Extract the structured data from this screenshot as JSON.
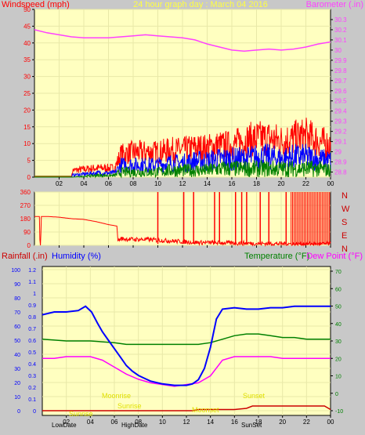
{
  "title": "24 hour graph day : March 04 2016",
  "colors": {
    "background": "#c8c8c8",
    "plot_bg": "#ffffc0",
    "grid": "#e8e8a8",
    "wind_gust": "#ff0000",
    "wind_avg": "#0000ff",
    "wind_low": "#008000",
    "barometer": "#ff40ff",
    "direction": "#ff0000",
    "humidity": "#0000ff",
    "temperature": "#008000",
    "dewpoint": "#ff00ff",
    "rainfall": "#cc0000",
    "sun_text": "#e0e000"
  },
  "x_tick_labels": [
    "02",
    "04",
    "06",
    "08",
    "10",
    "12",
    "14",
    "16",
    "18",
    "20",
    "22",
    "00"
  ],
  "chart_data": [
    {
      "type": "line",
      "name": "wind-barometer",
      "ylabel_left": "Windspeed (mph)",
      "ylabel_right": "Barometer (.in)",
      "ylim_left": [
        0,
        50
      ],
      "ylim_right": [
        28.75,
        30.4
      ],
      "left_ticks": [
        "0",
        "5",
        "10",
        "15",
        "20",
        "25",
        "30",
        "35",
        "40",
        "45",
        "50"
      ],
      "right_ticks": [
        "28.8",
        "28.9",
        "29",
        "29.1",
        "29.2",
        "29.3",
        "29.4",
        "29.5",
        "29.6",
        "29.7",
        "29.8",
        "29.9",
        "30",
        "30.1",
        "30.2",
        "30.3"
      ],
      "barometer": {
        "x": [
          0,
          1,
          2,
          3,
          4,
          5,
          6,
          7,
          8,
          9,
          10,
          11,
          12,
          13,
          14,
          15,
          16,
          17,
          18,
          19,
          20,
          21,
          22,
          23,
          24
        ],
        "y": [
          30.2,
          30.17,
          30.15,
          30.13,
          30.12,
          30.12,
          30.12,
          30.13,
          30.14,
          30.15,
          30.14,
          30.13,
          30.12,
          30.1,
          30.06,
          30.03,
          30.0,
          29.99,
          30.0,
          30.01,
          30.0,
          30.01,
          30.03,
          30.06,
          30.08
        ]
      },
      "wind_gust_envelope": {
        "x": [
          0,
          3,
          3.1,
          5,
          6.5,
          7,
          8,
          9,
          10,
          11,
          12,
          13,
          14,
          15,
          16,
          17,
          18,
          19,
          20,
          21,
          22,
          23,
          24
        ],
        "y": [
          0,
          0,
          3,
          4,
          4,
          10,
          11,
          11,
          11,
          12,
          12,
          13,
          13,
          14,
          14,
          16,
          17,
          17,
          16,
          17,
          18,
          16,
          14
        ]
      },
      "wind_avg_envelope": {
        "x": [
          0,
          3,
          3.1,
          5,
          6.5,
          7,
          8,
          9,
          10,
          11,
          12,
          13,
          14,
          15,
          16,
          17,
          18,
          19,
          20,
          21,
          22,
          23,
          24
        ],
        "y": [
          0,
          0,
          1,
          2,
          2,
          6,
          6,
          6,
          6,
          7,
          7,
          8,
          8,
          9,
          9,
          9,
          10,
          10,
          9,
          10,
          10,
          9,
          8
        ]
      },
      "wind_low_envelope": {
        "x": [
          0,
          3,
          3.1,
          5,
          6.5,
          7,
          8,
          9,
          10,
          11,
          12,
          13,
          14,
          15,
          16,
          17,
          18,
          19,
          20,
          21,
          22,
          23,
          24
        ],
        "y": [
          0,
          0,
          0,
          1,
          1,
          3,
          3,
          3,
          3,
          4,
          4,
          4,
          4,
          5,
          5,
          5,
          5,
          5,
          5,
          5,
          5,
          5,
          4
        ]
      }
    },
    {
      "type": "line",
      "name": "wind-direction",
      "left_ticks": [
        "0",
        "90",
        "180",
        "270",
        "360"
      ],
      "right_labels": [
        "N",
        "W",
        "S",
        "E",
        "N"
      ],
      "ylim": [
        0,
        360
      ],
      "x": [
        0,
        0.4,
        0.45,
        0.5,
        0.55,
        1,
        2,
        3,
        4,
        5,
        6,
        6.7,
        6.75,
        7,
        8,
        9,
        10,
        11,
        12,
        13,
        14,
        15,
        16,
        17,
        18,
        19,
        20,
        21,
        22,
        23,
        24
      ],
      "y": [
        195,
        195,
        0,
        0,
        195,
        195,
        190,
        180,
        175,
        160,
        140,
        130,
        30,
        45,
        40,
        40,
        35,
        30,
        25,
        20,
        18,
        18,
        15,
        15,
        12,
        12,
        10,
        10,
        10,
        10,
        10
      ]
    },
    {
      "type": "line",
      "name": "humidity-temp-dew",
      "ylabel_rain": "Rainfall (.in)",
      "ylabel_humidity": "Humidity (%)",
      "ylabel_temp": "Temperature (°F)",
      "ylabel_dew": "Dew Point (°F)",
      "rain_ticks": [
        "0",
        "0.1",
        "0.2",
        "0.3",
        "0.4",
        "0.5",
        "0.6",
        "0.7",
        "0.8",
        "0.9",
        "1",
        "1.1",
        "1.2"
      ],
      "hum_ticks": [
        "0",
        "10",
        "20",
        "30",
        "40",
        "50",
        "60",
        "70",
        "80",
        "90",
        "100"
      ],
      "temp_ticks": [
        "-10",
        "0",
        "10",
        "20",
        "30",
        "40",
        "50",
        "60",
        "70"
      ],
      "humidity": {
        "x": [
          0,
          1,
          2,
          3,
          3.6,
          4.1,
          4.6,
          5,
          5.5,
          6,
          6.5,
          7,
          7.5,
          8,
          8.5,
          9,
          10,
          11,
          12,
          12.5,
          13,
          13.5,
          14,
          14.5,
          15,
          16,
          17,
          18,
          19,
          20,
          21,
          22,
          23,
          24
        ],
        "y": [
          68,
          70,
          70,
          71,
          74,
          70,
          62,
          56,
          50,
          44,
          38,
          32,
          28,
          25,
          23,
          21,
          19,
          18,
          18,
          19,
          22,
          30,
          45,
          65,
          72,
          73,
          72,
          72,
          73,
          73,
          74,
          74,
          74,
          74
        ]
      },
      "temperature": {
        "x": [
          0,
          2,
          4,
          6,
          7,
          8,
          9,
          10,
          11,
          12,
          13,
          14,
          15,
          16,
          17,
          18,
          19,
          20,
          21,
          22,
          23,
          24
        ],
        "y": [
          31,
          30,
          30,
          29,
          28,
          28,
          28,
          28,
          28,
          28,
          28,
          29,
          31,
          33,
          34,
          34,
          33,
          32,
          32,
          31,
          31,
          31
        ]
      },
      "dewpoint": {
        "x": [
          0,
          1,
          2,
          3,
          4,
          5,
          6,
          7,
          8,
          9,
          10,
          11,
          12,
          13,
          14,
          15,
          16,
          17,
          18,
          19,
          20,
          21,
          22,
          23,
          24
        ],
        "y": [
          20,
          20,
          21,
          21,
          21,
          19,
          15,
          11,
          8,
          6,
          5,
          4,
          5,
          6,
          10,
          19,
          21,
          21,
          21,
          21,
          20,
          20,
          20,
          20,
          20
        ]
      },
      "rainfall": {
        "x": [
          0,
          12.5,
          13,
          14,
          16,
          17,
          17.5,
          18,
          19,
          20,
          21,
          22,
          23,
          23.5,
          24
        ],
        "y": [
          0,
          0,
          0.01,
          0.01,
          0.01,
          0.02,
          0.04,
          0.04,
          0.04,
          0.04,
          0.04,
          0.04,
          0.04,
          0.04,
          0.01
        ]
      },
      "bottom_labels": {
        "low": "LowDate",
        "high": "HighDate",
        "sunset": "SunSet"
      },
      "sun_annotations": [
        "Moonrise",
        "Sunrise",
        "Sunset",
        "Moonset",
        "Sunrise"
      ]
    }
  ]
}
